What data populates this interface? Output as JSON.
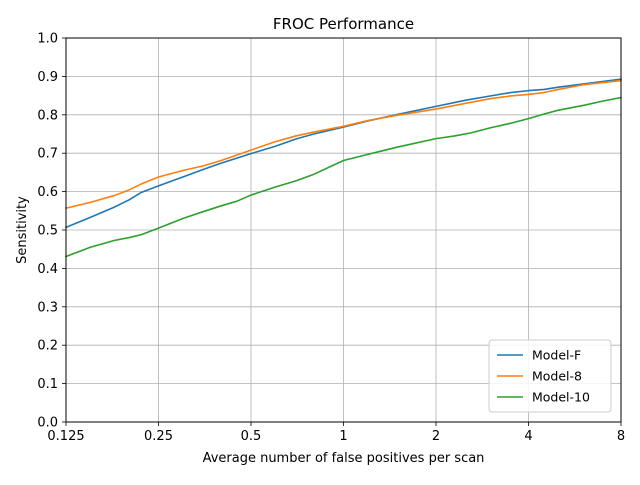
{
  "chart_data": {
    "type": "line",
    "title": "FROC Performance",
    "xlabel": "Average number of false positives per scan",
    "ylabel": "Sensitivity",
    "x_scale": "log2",
    "xlim": [
      0.125,
      8
    ],
    "ylim": [
      0,
      1.0
    ],
    "x_ticks": [
      0.125,
      0.25,
      0.5,
      1,
      2,
      4,
      8
    ],
    "x_tick_labels": [
      "0.125",
      "0.25",
      "0.5",
      "1",
      "2",
      "4",
      "8"
    ],
    "y_ticks": [
      0.0,
      0.1,
      0.2,
      0.3,
      0.4,
      0.5,
      0.6,
      0.7,
      0.8,
      0.9,
      1.0
    ],
    "y_tick_labels": [
      "0.0",
      "0.1",
      "0.2",
      "0.3",
      "0.4",
      "0.5",
      "0.6",
      "0.7",
      "0.8",
      "0.9",
      "1.0"
    ],
    "grid": true,
    "legend_position": "bottom-right",
    "series": [
      {
        "name": "Model-F",
        "color": "#1f77b4",
        "x": [
          0.125,
          0.15,
          0.18,
          0.2,
          0.22,
          0.25,
          0.3,
          0.35,
          0.4,
          0.5,
          0.6,
          0.7,
          0.8,
          1.0,
          1.2,
          1.5,
          2.0,
          2.5,
          3.0,
          3.5,
          4.0,
          4.5,
          5.0,
          6.0,
          7.0,
          8.0
        ],
        "y": [
          0.507,
          0.533,
          0.56,
          0.578,
          0.598,
          0.615,
          0.638,
          0.658,
          0.674,
          0.699,
          0.718,
          0.737,
          0.75,
          0.768,
          0.784,
          0.801,
          0.822,
          0.838,
          0.849,
          0.858,
          0.863,
          0.866,
          0.872,
          0.88,
          0.887,
          0.893
        ]
      },
      {
        "name": "Model-8",
        "color": "#ff7f0e",
        "x": [
          0.125,
          0.15,
          0.18,
          0.2,
          0.22,
          0.25,
          0.3,
          0.35,
          0.4,
          0.5,
          0.6,
          0.7,
          0.8,
          1.0,
          1.2,
          1.5,
          2.0,
          2.5,
          3.0,
          3.5,
          4.0,
          4.5,
          5.0,
          6.0,
          7.0,
          8.0
        ],
        "y": [
          0.557,
          0.572,
          0.59,
          0.604,
          0.62,
          0.638,
          0.655,
          0.667,
          0.681,
          0.708,
          0.73,
          0.745,
          0.755,
          0.77,
          0.785,
          0.799,
          0.815,
          0.83,
          0.842,
          0.849,
          0.853,
          0.858,
          0.866,
          0.878,
          0.884,
          0.889
        ]
      },
      {
        "name": "Model-10",
        "color": "#2ca02c",
        "x": [
          0.125,
          0.15,
          0.18,
          0.2,
          0.22,
          0.25,
          0.3,
          0.35,
          0.4,
          0.45,
          0.5,
          0.6,
          0.7,
          0.8,
          1.0,
          1.2,
          1.5,
          2.0,
          2.3,
          2.6,
          3.0,
          3.5,
          4.0,
          4.5,
          5.0,
          6.0,
          7.0,
          8.0
        ],
        "y": [
          0.431,
          0.455,
          0.473,
          0.48,
          0.488,
          0.505,
          0.53,
          0.548,
          0.563,
          0.575,
          0.591,
          0.612,
          0.628,
          0.645,
          0.681,
          0.697,
          0.716,
          0.738,
          0.745,
          0.753,
          0.766,
          0.778,
          0.79,
          0.802,
          0.812,
          0.824,
          0.836,
          0.845
        ]
      }
    ]
  }
}
